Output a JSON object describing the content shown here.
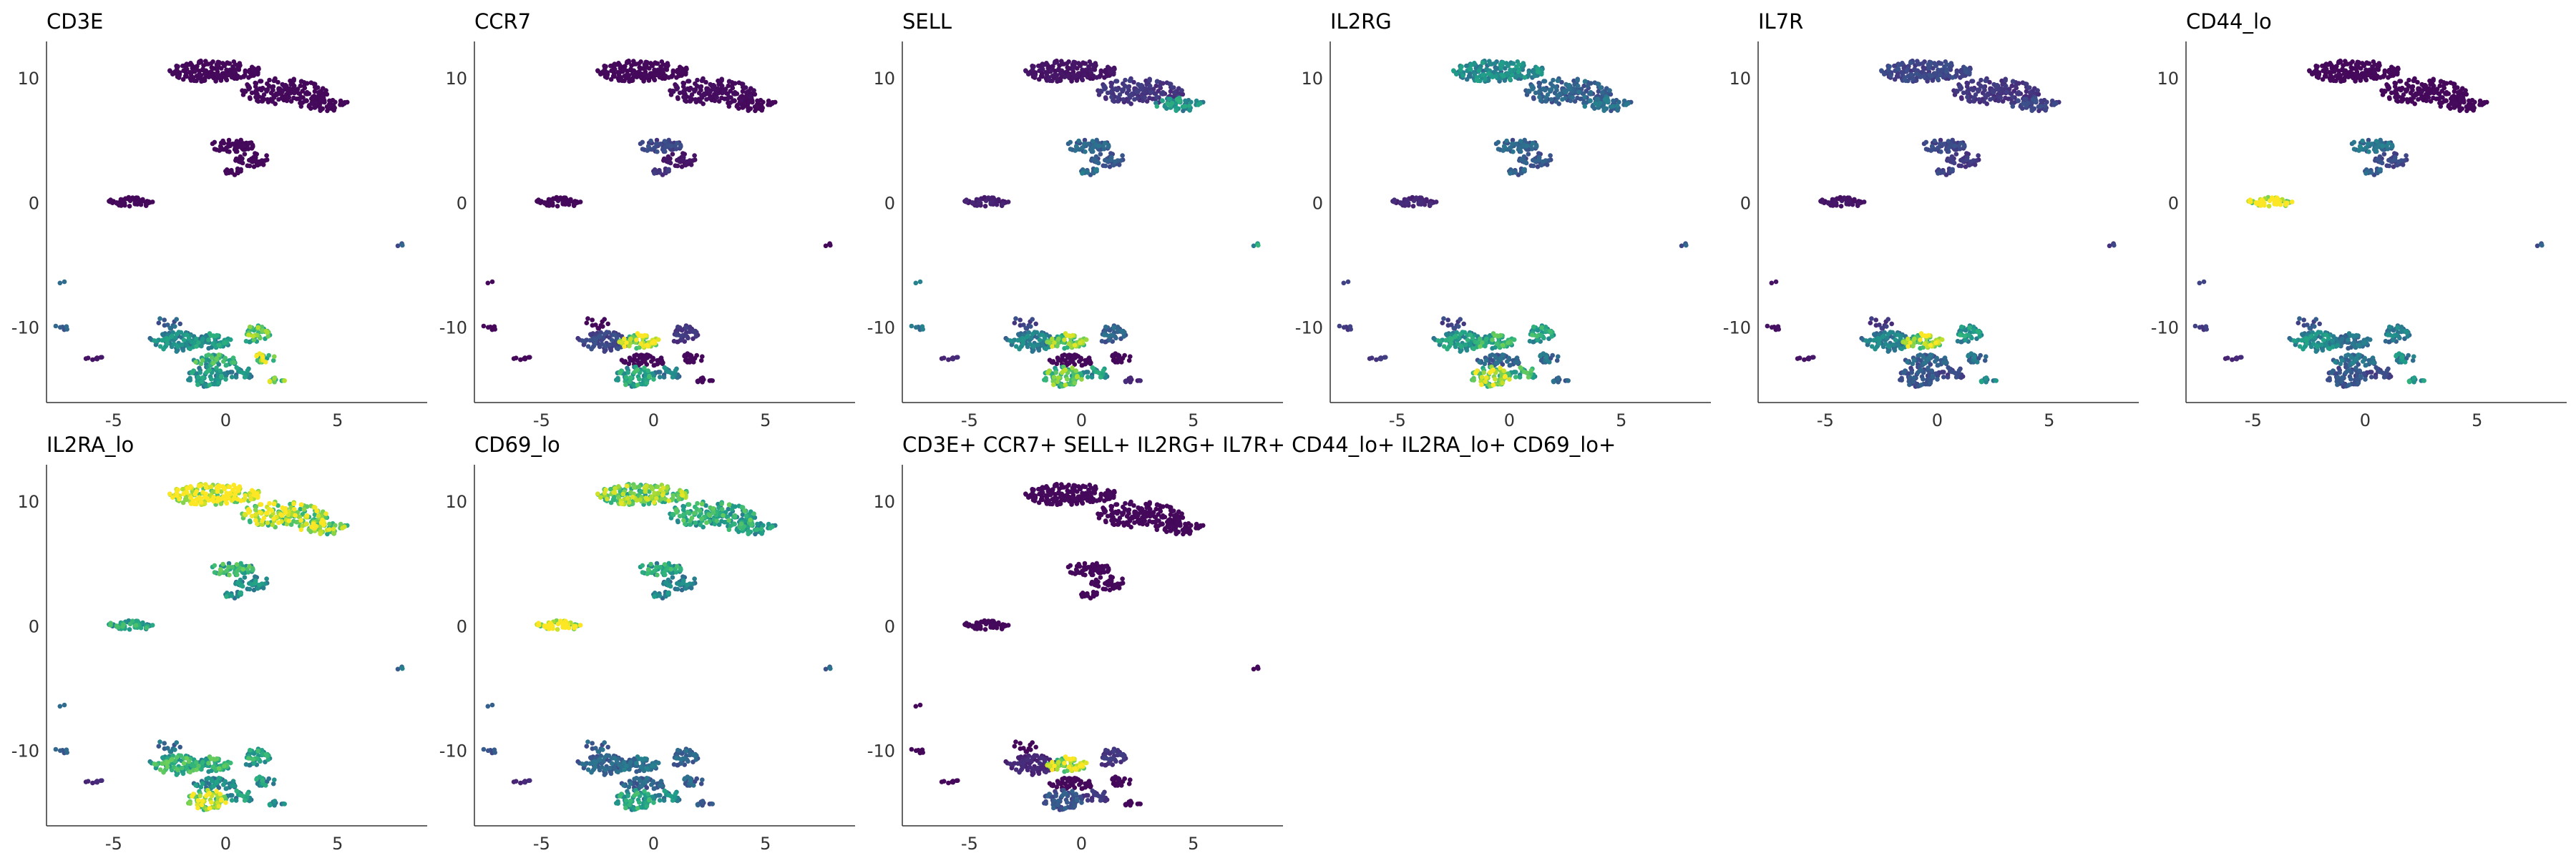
{
  "chart_data": [
    {
      "type": "scatter",
      "title": "CD3E",
      "xlim": [
        -8,
        9
      ],
      "ylim": [
        -16,
        13
      ],
      "xticks": [
        "-5",
        "0",
        "5"
      ],
      "yticks": [
        "10",
        "0",
        "-10"
      ],
      "intensity": [
        0.02,
        0.02,
        0.02,
        0.02,
        0.02,
        0.02,
        0.02,
        0.35,
        0.05,
        0.3,
        0.45,
        0.5,
        0.7,
        0.6,
        0.8,
        0.5,
        0.45,
        0.75,
        0.3
      ]
    },
    {
      "type": "scatter",
      "title": "CCR7",
      "xlim": [
        -8,
        9
      ],
      "ylim": [
        -16,
        13
      ],
      "xticks": [
        "-5",
        "0",
        "5"
      ],
      "yticks": [
        "10",
        "0",
        "-10"
      ],
      "intensity": [
        0.02,
        0.03,
        0.02,
        0.2,
        0.05,
        0.15,
        0.02,
        0.02,
        0.02,
        0.02,
        0.2,
        0.85,
        0.15,
        0.02,
        0.02,
        0.55,
        0.4,
        0.02,
        0.02
      ]
    },
    {
      "type": "scatter",
      "title": "SELL",
      "xlim": [
        -8,
        9
      ],
      "ylim": [
        -16,
        13
      ],
      "xticks": [
        "-5",
        "0",
        "5"
      ],
      "yticks": [
        "10",
        "0",
        "-10"
      ],
      "intensity": [
        0.05,
        0.15,
        0.5,
        0.3,
        0.25,
        0.35,
        0.08,
        0.45,
        0.1,
        0.2,
        0.4,
        0.75,
        0.3,
        0.02,
        0.02,
        0.7,
        0.5,
        0.1,
        0.6
      ]
    },
    {
      "type": "scatter",
      "title": "IL2RG",
      "xlim": [
        -8,
        9
      ],
      "ylim": [
        -16,
        13
      ],
      "xticks": [
        "-5",
        "0",
        "5"
      ],
      "yticks": [
        "10",
        "0",
        "-10"
      ],
      "intensity": [
        0.45,
        0.3,
        0.35,
        0.3,
        0.25,
        0.3,
        0.1,
        0.2,
        0.15,
        0.2,
        0.5,
        0.6,
        0.55,
        0.3,
        0.35,
        0.8,
        0.6,
        0.3,
        0.3
      ]
    },
    {
      "type": "scatter",
      "title": "IL7R",
      "xlim": [
        -8,
        9
      ],
      "ylim": [
        -16,
        13
      ],
      "xticks": [
        "-5",
        "0",
        "5"
      ],
      "yticks": [
        "10",
        "0",
        "-10"
      ],
      "intensity": [
        0.2,
        0.15,
        0.2,
        0.2,
        0.15,
        0.2,
        0.05,
        0.05,
        0.05,
        0.15,
        0.4,
        0.8,
        0.5,
        0.3,
        0.35,
        0.25,
        0.2,
        0.45,
        0.2
      ]
    },
    {
      "type": "scatter",
      "title": "CD44_lo",
      "xlim": [
        -8,
        9
      ],
      "ylim": [
        -16,
        13
      ],
      "xticks": [
        "-5",
        "0",
        "5"
      ],
      "yticks": [
        "10",
        "0",
        "-10"
      ],
      "intensity": [
        0.02,
        0.02,
        0.02,
        0.35,
        0.2,
        0.3,
        0.95,
        0.2,
        0.1,
        0.25,
        0.45,
        0.35,
        0.4,
        0.35,
        0.45,
        0.25,
        0.2,
        0.5,
        0.3
      ]
    },
    {
      "type": "scatter",
      "title": "IL2RA_lo",
      "xlim": [
        -8,
        9
      ],
      "ylim": [
        -16,
        13
      ],
      "xticks": [
        "-5",
        "0",
        "5"
      ],
      "yticks": [
        "10",
        "0",
        "-10"
      ],
      "intensity": [
        0.95,
        0.85,
        0.8,
        0.6,
        0.45,
        0.5,
        0.55,
        0.35,
        0.1,
        0.35,
        0.6,
        0.6,
        0.55,
        0.45,
        0.5,
        0.85,
        0.5,
        0.45,
        0.4
      ]
    },
    {
      "type": "scatter",
      "title": "CD69_lo",
      "xlim": [
        -8,
        9
      ],
      "ylim": [
        -16,
        13
      ],
      "xticks": [
        "-5",
        "0",
        "5"
      ],
      "yticks": [
        "10",
        "0",
        "-10"
      ],
      "intensity": [
        0.75,
        0.6,
        0.55,
        0.55,
        0.4,
        0.45,
        0.95,
        0.3,
        0.1,
        0.3,
        0.3,
        0.35,
        0.3,
        0.3,
        0.3,
        0.55,
        0.45,
        0.25,
        0.35
      ]
    },
    {
      "type": "scatter",
      "title": "CD3E+ CCR7+ SELL+ IL2RG+ IL7R+ CD44_lo+ IL2RA_lo+ CD69_lo+",
      "xlim": [
        -8,
        9
      ],
      "ylim": [
        -16,
        13
      ],
      "xticks": [
        "-5",
        "0",
        "5"
      ],
      "yticks": [
        "10",
        "0",
        "-10"
      ],
      "intensity": [
        0.02,
        0.02,
        0.02,
        0.02,
        0.02,
        0.02,
        0.02,
        0.02,
        0.02,
        0.02,
        0.1,
        0.85,
        0.15,
        0.02,
        0.02,
        0.25,
        0.15,
        0.02,
        0.02
      ]
    }
  ]
}
